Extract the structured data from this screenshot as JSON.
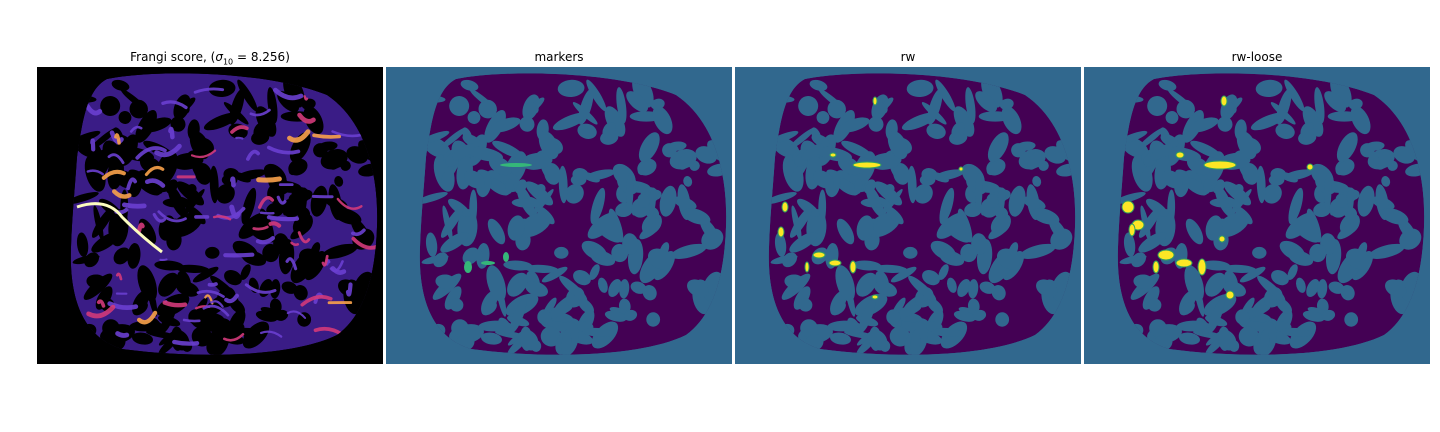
{
  "figure": {
    "panels": [
      {
        "id": "frangi",
        "title_prefix": "Frangi score, (",
        "title_math": "σ",
        "title_sub": "10",
        "title_suffix": " = 8.256)",
        "colormap": "magma",
        "background_color": "#000000",
        "region_color": "#3a1c86",
        "highlight_colors": [
          "#d33a7a",
          "#f9a24a",
          "#fcfdbf"
        ]
      },
      {
        "id": "markers",
        "title": "markers",
        "background_color": "#31688e",
        "region_color": "#440154",
        "marker_color": "#35b779"
      },
      {
        "id": "rw",
        "title": "rw",
        "background_color": "#31688e",
        "region_color": "#440154",
        "marker_color": "#fde725"
      },
      {
        "id": "rw-loose",
        "title": "rw-loose",
        "background_color": "#31688e",
        "region_color": "#440154",
        "marker_color": "#fde725"
      }
    ]
  }
}
